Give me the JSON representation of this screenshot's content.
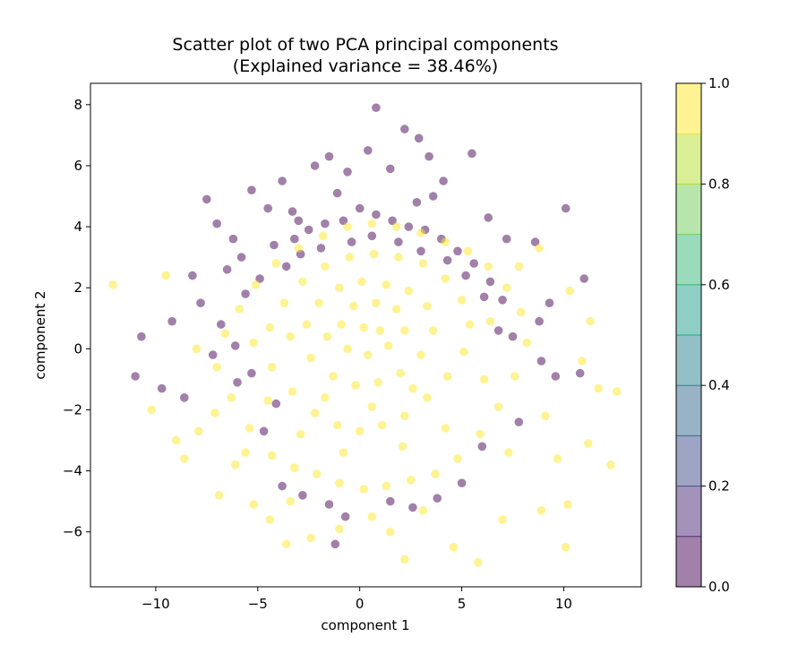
{
  "chart_data": {
    "type": "scatter",
    "title": "Scatter plot of two PCA principal components",
    "subtitle": "(Explained variance = 38.46%)",
    "xlabel": "component 1",
    "ylabel": "component 2",
    "xlim": [
      -13.2,
      13.8
    ],
    "ylim": [
      -7.8,
      8.7
    ],
    "xticks": [
      -10,
      -5,
      0,
      5,
      10
    ],
    "xtick_labels": [
      "−10",
      "−5",
      "0",
      "5",
      "10"
    ],
    "yticks": [
      -6,
      -4,
      -2,
      0,
      2,
      4,
      6,
      8
    ],
    "ytick_labels": [
      "−6",
      "−4",
      "−2",
      "0",
      "2",
      "4",
      "6",
      "8"
    ],
    "grid": false,
    "point_alpha": 0.5,
    "colorbar": {
      "vmin": 0.0,
      "vmax": 1.0,
      "levels": 10,
      "ticks": [
        0.0,
        0.2,
        0.4,
        0.6,
        0.8,
        1.0
      ],
      "tick_labels": [
        "0.0",
        "0.2",
        "0.4",
        "0.6",
        "0.8",
        "1.0"
      ],
      "colormap": [
        "#440154",
        "#482878",
        "#3e4a89",
        "#31688e",
        "#26828e",
        "#1f9e89",
        "#35b779",
        "#6ece58",
        "#b5de2b",
        "#fde725"
      ]
    },
    "series": [
      {
        "value": 0,
        "color": "#440154",
        "points": [
          [
            -7.5,
            4.9
          ],
          [
            -7.0,
            4.1
          ],
          [
            -6.2,
            3.6
          ],
          [
            -5.3,
            5.2
          ],
          [
            -4.5,
            4.6
          ],
          [
            -3.8,
            5.5
          ],
          [
            -3.0,
            4.2
          ],
          [
            -2.2,
            6.0
          ],
          [
            -1.5,
            6.3
          ],
          [
            -0.6,
            5.8
          ],
          [
            0.4,
            6.5
          ],
          [
            0.8,
            7.9
          ],
          [
            1.5,
            5.9
          ],
          [
            2.2,
            7.2
          ],
          [
            2.9,
            6.9
          ],
          [
            3.4,
            6.3
          ],
          [
            4.1,
            5.5
          ],
          [
            5.5,
            6.4
          ],
          [
            6.3,
            4.3
          ],
          [
            7.2,
            3.6
          ],
          [
            8.6,
            3.5
          ],
          [
            10.1,
            4.6
          ],
          [
            11.0,
            2.3
          ],
          [
            9.3,
            1.5
          ],
          [
            8.8,
            0.9
          ],
          [
            9.6,
            -0.9
          ],
          [
            10.8,
            -0.8
          ],
          [
            7.5,
            0.4
          ],
          [
            -8.2,
            2.4
          ],
          [
            -9.2,
            0.9
          ],
          [
            -10.7,
            0.4
          ],
          [
            -11.0,
            -0.9
          ],
          [
            -9.7,
            -1.3
          ],
          [
            -8.6,
            -1.6
          ],
          [
            -7.8,
            1.5
          ],
          [
            -6.5,
            2.6
          ],
          [
            -5.8,
            3.0
          ],
          [
            -4.2,
            3.4
          ],
          [
            -3.2,
            3.6
          ],
          [
            -2.5,
            3.9
          ],
          [
            -1.7,
            4.1
          ],
          [
            -0.8,
            4.2
          ],
          [
            0.0,
            4.6
          ],
          [
            0.8,
            4.4
          ],
          [
            1.6,
            4.2
          ],
          [
            2.4,
            4.0
          ],
          [
            3.2,
            3.9
          ],
          [
            4.0,
            3.6
          ],
          [
            4.8,
            3.2
          ],
          [
            5.6,
            2.8
          ],
          [
            6.4,
            2.2
          ],
          [
            7.0,
            1.6
          ],
          [
            -6.8,
            0.8
          ],
          [
            -7.2,
            -0.2
          ],
          [
            -6.0,
            -1.1
          ],
          [
            -4.7,
            -2.7
          ],
          [
            -3.8,
            -4.5
          ],
          [
            -2.8,
            -4.8
          ],
          [
            -1.5,
            -5.1
          ],
          [
            -0.7,
            -5.5
          ],
          [
            1.5,
            -5.0
          ],
          [
            2.6,
            -5.2
          ],
          [
            3.8,
            -4.9
          ],
          [
            5.0,
            -4.4
          ],
          [
            6.0,
            -3.2
          ],
          [
            7.8,
            -2.4
          ],
          [
            8.9,
            -0.4
          ],
          [
            -1.2,
            -6.4
          ],
          [
            -5.6,
            1.8
          ],
          [
            -4.9,
            2.3
          ],
          [
            -3.6,
            2.7
          ],
          [
            -2.9,
            3.1
          ],
          [
            -1.9,
            3.3
          ],
          [
            -0.4,
            3.5
          ],
          [
            0.6,
            3.7
          ],
          [
            1.9,
            3.5
          ],
          [
            3.0,
            3.2
          ],
          [
            4.3,
            2.9
          ],
          [
            5.2,
            2.4
          ],
          [
            6.1,
            1.7
          ],
          [
            6.8,
            0.6
          ],
          [
            -6.1,
            0.1
          ],
          [
            -5.3,
            -0.8
          ],
          [
            -4.1,
            -1.8
          ],
          [
            3.6,
            5.0
          ],
          [
            -1.1,
            5.1
          ],
          [
            2.8,
            4.8
          ],
          [
            -3.3,
            4.5
          ]
        ]
      },
      {
        "value": 1,
        "color": "#fde725",
        "points": [
          [
            -12.1,
            2.1
          ],
          [
            -9.5,
            2.4
          ],
          [
            -10.2,
            -2.0
          ],
          [
            -9.0,
            -3.0
          ],
          [
            -7.9,
            -2.7
          ],
          [
            -6.9,
            -4.8
          ],
          [
            -6.1,
            -3.8
          ],
          [
            -5.2,
            -5.1
          ],
          [
            -4.4,
            -5.6
          ],
          [
            -3.6,
            -6.4
          ],
          [
            -2.4,
            -6.2
          ],
          [
            -1.0,
            -5.9
          ],
          [
            0.6,
            -5.5
          ],
          [
            1.5,
            -6.0
          ],
          [
            2.2,
            -6.9
          ],
          [
            4.6,
            -6.5
          ],
          [
            5.8,
            -7.0
          ],
          [
            7.0,
            -5.6
          ],
          [
            8.9,
            -5.3
          ],
          [
            10.1,
            -6.5
          ],
          [
            10.2,
            -5.1
          ],
          [
            11.2,
            -3.1
          ],
          [
            12.3,
            -3.8
          ],
          [
            11.7,
            -1.3
          ],
          [
            12.6,
            -1.4
          ],
          [
            10.9,
            -0.4
          ],
          [
            11.3,
            0.9
          ],
          [
            10.3,
            1.9
          ],
          [
            8.8,
            3.3
          ],
          [
            7.8,
            2.7
          ],
          [
            -8.0,
            0.0
          ],
          [
            -7.0,
            -0.6
          ],
          [
            -6.3,
            -1.6
          ],
          [
            -5.4,
            -2.6
          ],
          [
            -4.3,
            -3.5
          ],
          [
            -3.2,
            -3.9
          ],
          [
            -2.1,
            -4.1
          ],
          [
            -1.0,
            -4.4
          ],
          [
            0.2,
            -4.6
          ],
          [
            1.3,
            -4.5
          ],
          [
            2.5,
            -4.3
          ],
          [
            3.7,
            -4.1
          ],
          [
            4.8,
            -3.6
          ],
          [
            5.9,
            -2.8
          ],
          [
            6.8,
            -1.9
          ],
          [
            7.6,
            -0.9
          ],
          [
            8.2,
            0.2
          ],
          [
            7.9,
            1.2
          ],
          [
            7.2,
            2.0
          ],
          [
            6.3,
            2.7
          ],
          [
            5.3,
            3.2
          ],
          [
            4.2,
            3.5
          ],
          [
            3.0,
            3.8
          ],
          [
            1.8,
            4.0
          ],
          [
            0.6,
            4.1
          ],
          [
            -0.6,
            4.0
          ],
          [
            -1.8,
            3.7
          ],
          [
            -3.0,
            3.3
          ],
          [
            -4.1,
            2.8
          ],
          [
            -5.1,
            2.1
          ],
          [
            -5.9,
            1.3
          ],
          [
            -6.6,
            0.5
          ],
          [
            -5.2,
            0.2
          ],
          [
            -4.3,
            -0.6
          ],
          [
            -3.3,
            -1.4
          ],
          [
            -2.2,
            -2.1
          ],
          [
            -1.1,
            -2.5
          ],
          [
            0.0,
            -2.7
          ],
          [
            1.1,
            -2.5
          ],
          [
            2.2,
            -2.2
          ],
          [
            3.3,
            -1.6
          ],
          [
            4.3,
            -0.9
          ],
          [
            5.1,
            -0.1
          ],
          [
            5.4,
            0.8
          ],
          [
            5.0,
            1.6
          ],
          [
            4.2,
            2.3
          ],
          [
            3.1,
            2.8
          ],
          [
            1.9,
            3.0
          ],
          [
            0.7,
            3.1
          ],
          [
            -0.5,
            3.0
          ],
          [
            -1.7,
            2.7
          ],
          [
            -2.8,
            2.2
          ],
          [
            -3.7,
            1.5
          ],
          [
            -4.4,
            0.7
          ],
          [
            -3.4,
            0.4
          ],
          [
            -2.4,
            -0.3
          ],
          [
            -1.3,
            -0.9
          ],
          [
            -0.2,
            -1.2
          ],
          [
            0.9,
            -1.1
          ],
          [
            2.0,
            -0.8
          ],
          [
            3.0,
            -0.2
          ],
          [
            3.6,
            0.6
          ],
          [
            3.3,
            1.4
          ],
          [
            2.4,
            1.9
          ],
          [
            1.3,
            2.1
          ],
          [
            0.1,
            2.2
          ],
          [
            -1.0,
            2.0
          ],
          [
            -2.0,
            1.5
          ],
          [
            -2.6,
            0.8
          ],
          [
            -1.6,
            0.4
          ],
          [
            -0.6,
            0.0
          ],
          [
            0.4,
            -0.2
          ],
          [
            1.4,
            0.1
          ],
          [
            2.2,
            0.6
          ],
          [
            1.8,
            1.3
          ],
          [
            0.8,
            1.5
          ],
          [
            -0.3,
            1.4
          ],
          [
            -0.9,
            0.8
          ],
          [
            0.2,
            0.7
          ],
          [
            1.0,
            0.6
          ],
          [
            -1.7,
            -1.6
          ],
          [
            0.6,
            -1.9
          ],
          [
            2.6,
            -1.3
          ],
          [
            -2.9,
            -2.8
          ],
          [
            2.1,
            -3.2
          ],
          [
            -0.8,
            -3.4
          ],
          [
            4.2,
            -2.6
          ],
          [
            -4.5,
            -1.7
          ],
          [
            6.1,
            -1.0
          ],
          [
            6.4,
            0.9
          ],
          [
            -5.6,
            -3.4
          ],
          [
            3.1,
            -5.3
          ],
          [
            -3.4,
            -5.0
          ],
          [
            7.3,
            -3.4
          ],
          [
            9.1,
            -2.2
          ],
          [
            -7.1,
            -2.1
          ],
          [
            9.7,
            -3.6
          ],
          [
            -8.6,
            -3.6
          ]
        ]
      }
    ]
  }
}
